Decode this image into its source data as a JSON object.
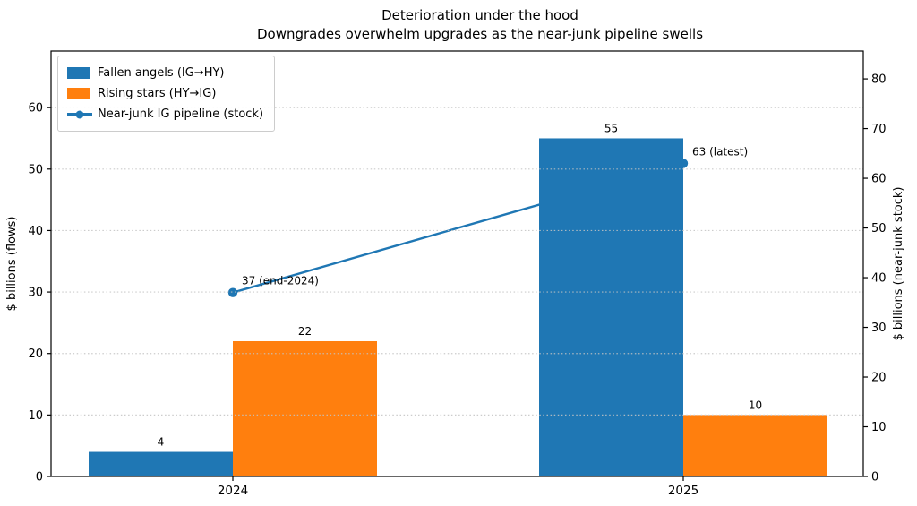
{
  "title": "Deterioration under the hood",
  "subtitle": "Downgrades overwhelm upgrades as the near-junk pipeline swells",
  "chart_data": {
    "type": "bar",
    "categories": [
      "2024",
      "2025"
    ],
    "series": [
      {
        "name": "Fallen angels (IG→HY)",
        "kind": "bar",
        "axis": "left",
        "color": "#1f77b4",
        "values": [
          4,
          55
        ]
      },
      {
        "name": "Rising stars (HY→IG)",
        "kind": "bar",
        "axis": "left",
        "color": "#ff7f0e",
        "values": [
          22,
          10
        ]
      },
      {
        "name": "Near-junk IG pipeline (stock)",
        "kind": "line",
        "axis": "right",
        "color": "#1f77b4",
        "values": [
          37,
          63
        ],
        "point_annotations": [
          "37 (end-2024)",
          "63 (latest)"
        ]
      }
    ],
    "bar_value_labels": true,
    "left_axis": {
      "label": "$ billions (flows)",
      "ticks": [
        0,
        10,
        20,
        30,
        40,
        50,
        60
      ],
      "range": [
        0,
        69.2
      ]
    },
    "right_axis": {
      "label": "$ billions (near-junk stock)",
      "ticks": [
        0,
        10,
        20,
        30,
        40,
        50,
        60,
        70,
        80
      ],
      "range": [
        0,
        85.6
      ]
    },
    "x_axis": {
      "tick_labels": [
        "2024",
        "2025"
      ]
    },
    "grid": {
      "axis": "y",
      "style": "dotted",
      "color": "#c4c4c4"
    },
    "legend": {
      "position": "upper left"
    },
    "background": "#ffffff",
    "text_color": "#000000",
    "spine_color": "#000000"
  }
}
